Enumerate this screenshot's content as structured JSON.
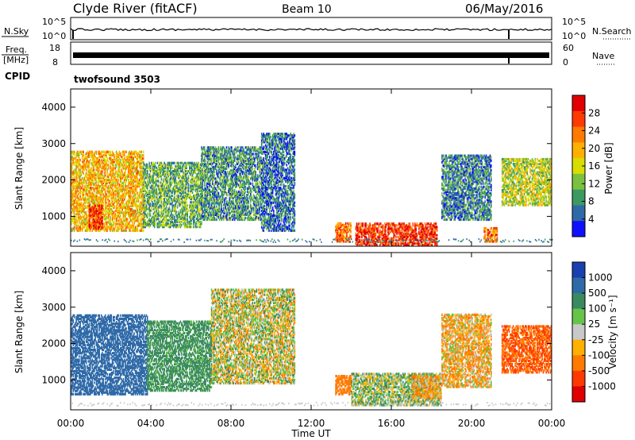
{
  "header": {
    "station": "Clyde River (fitACF)",
    "beam": "Beam 10",
    "date": "06/May/2016"
  },
  "noise_panel": {
    "left_label": "N.Sky",
    "right_label": "N.Search",
    "left_ticks": [
      "10^5",
      "10^0"
    ],
    "right_ticks": [
      "10^5",
      "10^0"
    ]
  },
  "freq_panel": {
    "left_label_line1": "Freq.",
    "left_label_line2": "[MHz]",
    "right_label": "Nave",
    "left_ticks": [
      "18",
      "8"
    ],
    "right_ticks": [
      "60",
      "0"
    ],
    "cpid_label": "CPID",
    "cpid_value": "twofsound 3503"
  },
  "power_panel": {
    "ylabel": "Slant Range [km]",
    "yticks": [
      "4000",
      "3000",
      "2000",
      "1000"
    ],
    "colorbar": {
      "label": "Power [dB]",
      "ticks": [
        "28",
        "24",
        "20",
        "16",
        "12",
        "8",
        "4"
      ],
      "colors": [
        "#e00000",
        "#ff3a00",
        "#ff7a00",
        "#ffb000",
        "#d8dd00",
        "#7cc040",
        "#3a9a62",
        "#2f6aa8",
        "#1010ff"
      ]
    }
  },
  "velocity_panel": {
    "ylabel": "Slant Range [km]",
    "yticks": [
      "4000",
      "3000",
      "2000",
      "1000"
    ],
    "colorbar": {
      "label": "Velocity [m s⁻¹]",
      "ticks": [
        "1000",
        "500",
        "100",
        "25",
        "-25",
        "-100",
        "-500",
        "-1000"
      ],
      "colors": [
        "#1a3fb0",
        "#2f6aa8",
        "#3a8a60",
        "#66c44a",
        "#c8c8c8",
        "#ffb000",
        "#ff7a00",
        "#ff3a00",
        "#e00000"
      ]
    }
  },
  "x_axis": {
    "ticks": [
      "00:00",
      "04:00",
      "08:00",
      "12:00",
      "16:00",
      "20:00",
      "00:00"
    ],
    "label": "Time UT"
  },
  "chart_data": [
    {
      "type": "heatmap",
      "title": "Power [dB]",
      "xlabel": "Time UT",
      "ylabel": "Slant Range [km]",
      "x_range_hours": [
        0,
        24
      ],
      "ylim": [
        180,
        4500
      ],
      "colorbar_range": [
        0,
        30
      ],
      "clusters": [
        {
          "t0": 0.0,
          "t1": 3.6,
          "r0": 600,
          "r1": 2800,
          "power": 18
        },
        {
          "t0": 0.9,
          "t1": 1.6,
          "r0": 650,
          "r1": 1300,
          "power": 26
        },
        {
          "t0": 3.6,
          "t1": 6.5,
          "r0": 700,
          "r1": 2500,
          "power": 10
        },
        {
          "t0": 6.5,
          "t1": 9.5,
          "r0": 900,
          "r1": 2900,
          "power": 8
        },
        {
          "t0": 9.5,
          "t1": 11.2,
          "r0": 600,
          "r1": 3300,
          "power": 6
        },
        {
          "t0": 13.2,
          "t1": 14.0,
          "r0": 300,
          "r1": 800,
          "power": 22
        },
        {
          "t0": 14.2,
          "t1": 18.3,
          "r0": 200,
          "r1": 800,
          "power": 26
        },
        {
          "t0": 18.5,
          "t1": 21.0,
          "r0": 900,
          "r1": 2700,
          "power": 7
        },
        {
          "t0": 20.6,
          "t1": 21.3,
          "r0": 300,
          "r1": 700,
          "power": 22
        },
        {
          "t0": 21.5,
          "t1": 24.0,
          "r0": 1300,
          "r1": 2600,
          "power": 14
        }
      ]
    },
    {
      "type": "heatmap",
      "title": "Velocity [m s⁻¹]",
      "xlabel": "Time UT",
      "ylabel": "Slant Range [km]",
      "x_range_hours": [
        0,
        24
      ],
      "ylim": [
        180,
        4500
      ],
      "colorbar_range": [
        -1000,
        1000
      ],
      "clusters": [
        {
          "t0": 0.0,
          "t1": 3.8,
          "r0": 600,
          "r1": 2800,
          "velocity": 800
        },
        {
          "t0": 3.8,
          "t1": 7.0,
          "r0": 700,
          "r1": 2600,
          "velocity": 200
        },
        {
          "t0": 7.0,
          "t1": 11.2,
          "r0": 900,
          "r1": 3500,
          "velocity": 0
        },
        {
          "t0": 13.2,
          "t1": 14.0,
          "r0": 600,
          "r1": 1100,
          "velocity": -300
        },
        {
          "t0": 14.0,
          "t1": 18.5,
          "r0": 300,
          "r1": 1200,
          "velocity": 60
        },
        {
          "t0": 17.0,
          "t1": 18.5,
          "r0": 500,
          "r1": 1100,
          "velocity": -120
        },
        {
          "t0": 18.5,
          "t1": 21.0,
          "r0": 800,
          "r1": 2800,
          "velocity": -80
        },
        {
          "t0": 21.5,
          "t1": 24.0,
          "r0": 1200,
          "r1": 2500,
          "velocity": -500
        }
      ]
    }
  ]
}
